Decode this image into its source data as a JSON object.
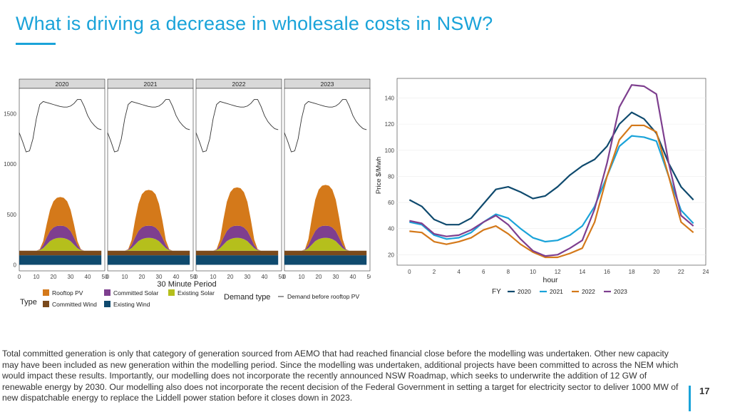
{
  "slide": {
    "title": "What is driving a decrease in wholesale costs in NSW?",
    "page_number": "17",
    "body_text": "Total committed generation is only that category of generation sourced from AEMO that had reached financial close before the modelling was undertaken. Other new capacity may have been included as new generation within the modelling period. Since the modelling was undertaken, additional projects have been committed to across the NEM which would impact these results. Importantly, our modelling does not incorporate the recently announced NSW Roadmap, which seeks to underwrite the addition of 12 GW of renewable energy by 2030. Our modelling also does not incorporate the recent decision of the Federal Government in setting a target for electricity sector to deliver 1000 MW of new dispatchable energy to replace the Liddell power station before it closes down in 2023.",
    "accent_color": "#1aa3d9"
  },
  "chart_data": [
    {
      "type": "area",
      "facets": [
        "2020",
        "2021",
        "2022",
        "2023"
      ],
      "xlabel": "30 Minute Period",
      "ylabel": "",
      "xlim": [
        0,
        50
      ],
      "ylim": [
        -60,
        1750
      ],
      "x_ticks": [
        0,
        10,
        20,
        30,
        40,
        50
      ],
      "y_ticks": [
        0,
        500,
        1000,
        1500
      ],
      "stacked": true,
      "legend": {
        "type_title": "Type",
        "demand_title": "Demand type",
        "position": "bottom",
        "entries": [
          {
            "name": "Rooftop PV",
            "color": "#d4791a"
          },
          {
            "name": "Committed Solar",
            "color": "#7e3f8f"
          },
          {
            "name": "Existing Solar",
            "color": "#b5bf1c"
          },
          {
            "name": "Committed Wind",
            "color": "#7a4a1c"
          },
          {
            "name": "Existing Wind",
            "color": "#0f4a6e"
          }
        ],
        "demand_entry": "Demand before rooftop PV"
      },
      "x": [
        0,
        2,
        4,
        6,
        8,
        10,
        12,
        14,
        16,
        18,
        20,
        22,
        24,
        26,
        28,
        30,
        32,
        34,
        36,
        38,
        40,
        42,
        44,
        46,
        48
      ],
      "series": [
        {
          "name": "Existing Wind",
          "color": "#0f4a6e",
          "values": [
            95,
            95,
            95,
            95,
            95,
            95,
            95,
            95,
            95,
            95,
            95,
            95,
            95,
            95,
            95,
            95,
            95,
            95,
            95,
            95,
            95,
            95,
            95,
            95,
            95
          ]
        },
        {
          "name": "Committed Wind",
          "color": "#7a4a1c",
          "values": [
            45,
            45,
            45,
            45,
            45,
            45,
            45,
            45,
            45,
            45,
            45,
            45,
            45,
            45,
            45,
            45,
            45,
            45,
            45,
            45,
            45,
            45,
            45,
            45,
            45
          ]
        },
        {
          "name": "Existing Solar",
          "color": "#b5bf1c",
          "values": [
            0,
            0,
            0,
            0,
            0,
            0,
            5,
            25,
            60,
            95,
            115,
            125,
            128,
            125,
            115,
            95,
            60,
            25,
            5,
            0,
            0,
            0,
            0,
            0,
            0
          ]
        },
        {
          "name": "Committed Solar",
          "color": "#7e3f8f",
          "values": [
            0,
            0,
            0,
            0,
            0,
            0,
            5,
            30,
            70,
            100,
            115,
            120,
            120,
            120,
            115,
            100,
            70,
            30,
            5,
            0,
            0,
            0,
            0,
            0,
            0
          ]
        },
        {
          "name": "Rooftop PV",
          "color": "#d4791a",
          "values": [
            0,
            0,
            0,
            0,
            0,
            0,
            5,
            40,
            130,
            210,
            260,
            280,
            285,
            280,
            260,
            210,
            130,
            40,
            5,
            0,
            0,
            0,
            0,
            0,
            0
          ]
        }
      ],
      "rooftop_pv_by_facet": {
        "2020": [
          0,
          0,
          0,
          0,
          0,
          0,
          5,
          40,
          130,
          210,
          260,
          280,
          285,
          280,
          260,
          210,
          130,
          40,
          5,
          0,
          0,
          0,
          0,
          0,
          0
        ],
        "2021": [
          0,
          0,
          0,
          0,
          0,
          0,
          5,
          50,
          170,
          270,
          330,
          350,
          355,
          350,
          330,
          270,
          170,
          50,
          5,
          0,
          0,
          0,
          0,
          0,
          0
        ],
        "2022": [
          0,
          0,
          0,
          0,
          0,
          0,
          5,
          55,
          180,
          290,
          350,
          375,
          380,
          375,
          350,
          290,
          180,
          55,
          5,
          0,
          0,
          0,
          0,
          0,
          0
        ],
        "2023": [
          0,
          0,
          0,
          0,
          0,
          0,
          5,
          60,
          195,
          310,
          375,
          400,
          405,
          400,
          375,
          310,
          195,
          60,
          5,
          0,
          0,
          0,
          0,
          0,
          0
        ]
      },
      "demand": {
        "name": "Demand before rooftop PV",
        "x": [
          0,
          2,
          4,
          6,
          8,
          10,
          12,
          14,
          16,
          18,
          20,
          22,
          24,
          26,
          28,
          30,
          32,
          34,
          36,
          38,
          40,
          42,
          44,
          46,
          48
        ],
        "values": [
          1310,
          1220,
          1120,
          1130,
          1250,
          1450,
          1590,
          1620,
          1610,
          1600,
          1590,
          1580,
          1570,
          1565,
          1565,
          1575,
          1600,
          1640,
          1640,
          1570,
          1480,
          1420,
          1380,
          1350,
          1340
        ]
      }
    },
    {
      "type": "line",
      "xlabel": "hour",
      "ylabel": "Price $/Mwh",
      "xlim": [
        -1,
        24
      ],
      "ylim": [
        12,
        155
      ],
      "x_ticks": [
        0,
        2,
        4,
        6,
        8,
        10,
        12,
        14,
        16,
        18,
        20,
        22,
        24
      ],
      "y_ticks": [
        20,
        40,
        60,
        80,
        100,
        120,
        140
      ],
      "legend": {
        "title": "FY",
        "position": "bottom"
      },
      "x": [
        0,
        1,
        2,
        3,
        4,
        5,
        6,
        7,
        8,
        9,
        10,
        11,
        12,
        13,
        14,
        15,
        16,
        17,
        18,
        19,
        20,
        21,
        22,
        23
      ],
      "series": [
        {
          "name": "2020",
          "color": "#0f4a6e",
          "values": [
            62,
            57,
            47,
            43,
            43,
            48,
            59,
            70,
            72,
            68,
            63,
            65,
            72,
            81,
            88,
            93,
            103,
            120,
            129,
            124,
            113,
            90,
            72,
            62
          ]
        },
        {
          "name": "2021",
          "color": "#1aa3d9",
          "values": [
            45,
            43,
            35,
            32,
            33,
            37,
            45,
            51,
            48,
            40,
            33,
            30,
            31,
            35,
            42,
            57,
            80,
            103,
            111,
            110,
            107,
            80,
            54,
            44
          ]
        },
        {
          "name": "2022",
          "color": "#d4791a",
          "values": [
            38,
            37,
            30,
            28,
            30,
            33,
            39,
            42,
            36,
            28,
            22,
            18,
            18,
            21,
            25,
            45,
            80,
            108,
            119,
            119,
            114,
            80,
            45,
            37
          ]
        },
        {
          "name": "2023",
          "color": "#7e3f8f",
          "values": [
            46,
            44,
            36,
            34,
            35,
            39,
            45,
            50,
            43,
            32,
            23,
            19,
            20,
            25,
            31,
            55,
            90,
            133,
            150,
            149,
            143,
            90,
            50,
            42
          ]
        }
      ]
    }
  ]
}
